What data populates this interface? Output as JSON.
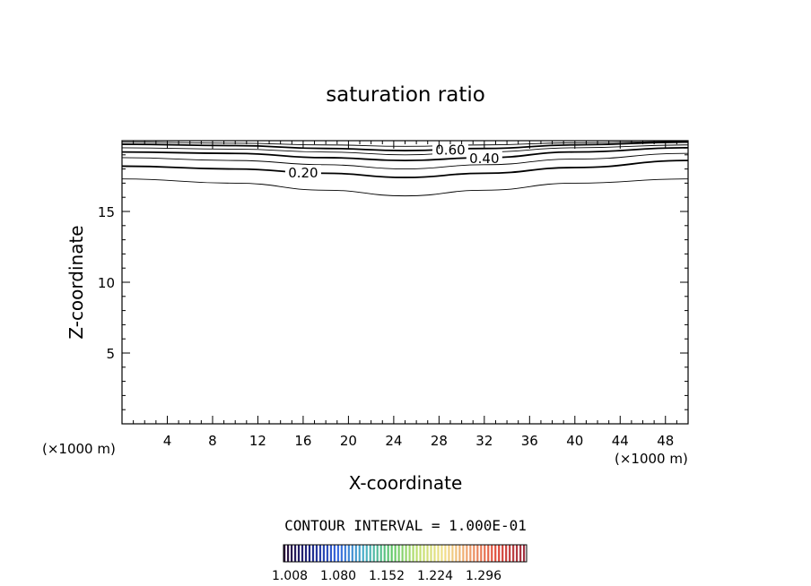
{
  "chart_data": {
    "type": "contour",
    "title": "saturation ratio",
    "xlabel": "X-coordinate",
    "ylabel": "Z-coordinate",
    "x_unit_label": "(×1000 m)",
    "y_unit_label": "(×1000 m)",
    "xlim": [
      0,
      50
    ],
    "ylim": [
      0,
      20
    ],
    "x_ticks": [
      4,
      8,
      12,
      16,
      20,
      24,
      28,
      32,
      36,
      40,
      44,
      48
    ],
    "y_ticks": [
      5,
      10,
      15
    ],
    "contour_interval_text": "CONTOUR INTERVAL = 1.000E-01",
    "contours": [
      {
        "level": 0.1,
        "label": "",
        "bold": false,
        "points": [
          [
            0,
            17.3
          ],
          [
            10,
            17.0
          ],
          [
            18,
            16.5
          ],
          [
            25,
            16.1
          ],
          [
            32,
            16.5
          ],
          [
            40,
            17.0
          ],
          [
            50,
            17.3
          ]
        ]
      },
      {
        "level": 0.2,
        "label": "0.20",
        "bold": true,
        "points": [
          [
            0,
            18.2
          ],
          [
            10,
            18.0
          ],
          [
            18,
            17.7
          ],
          [
            25,
            17.4
          ],
          [
            32,
            17.7
          ],
          [
            40,
            18.1
          ],
          [
            50,
            18.6
          ]
        ]
      },
      {
        "level": 0.3,
        "label": "",
        "bold": false,
        "points": [
          [
            0,
            18.8
          ],
          [
            10,
            18.6
          ],
          [
            18,
            18.3
          ],
          [
            25,
            18.0
          ],
          [
            32,
            18.3
          ],
          [
            40,
            18.7
          ],
          [
            50,
            19.1
          ]
        ]
      },
      {
        "level": 0.4,
        "label": "0.40",
        "bold": true,
        "points": [
          [
            0,
            19.2
          ],
          [
            10,
            19.1
          ],
          [
            18,
            18.8
          ],
          [
            25,
            18.6
          ],
          [
            32,
            18.8
          ],
          [
            40,
            19.2
          ],
          [
            50,
            19.5
          ]
        ]
      },
      {
        "level": 0.5,
        "label": "",
        "bold": false,
        "points": [
          [
            0,
            19.5
          ],
          [
            10,
            19.4
          ],
          [
            18,
            19.2
          ],
          [
            25,
            19.0
          ],
          [
            32,
            19.2
          ],
          [
            40,
            19.5
          ],
          [
            50,
            19.7
          ]
        ]
      },
      {
        "level": 0.6,
        "label": "0.60",
        "bold": true,
        "points": [
          [
            0,
            19.75
          ],
          [
            10,
            19.65
          ],
          [
            18,
            19.45
          ],
          [
            25,
            19.3
          ],
          [
            32,
            19.45
          ],
          [
            40,
            19.7
          ],
          [
            50,
            19.9
          ]
        ]
      },
      {
        "level": 0.7,
        "label": "",
        "bold": false,
        "points": [
          [
            0,
            19.9
          ],
          [
            10,
            19.82
          ],
          [
            18,
            19.7
          ],
          [
            25,
            19.6
          ],
          [
            32,
            19.7
          ],
          [
            40,
            19.85
          ],
          [
            50,
            19.95
          ]
        ]
      }
    ],
    "colorbar": {
      "tick_labels": [
        "1.008",
        "1.080",
        "1.152",
        "1.224",
        "1.296"
      ],
      "colors": [
        "#2b0f3a",
        "#1e2a8a",
        "#3a6ae0",
        "#4ab0c8",
        "#5ec86a",
        "#bfe070",
        "#f2e08a",
        "#ee9a6a",
        "#e04a3a",
        "#a03040"
      ]
    }
  }
}
